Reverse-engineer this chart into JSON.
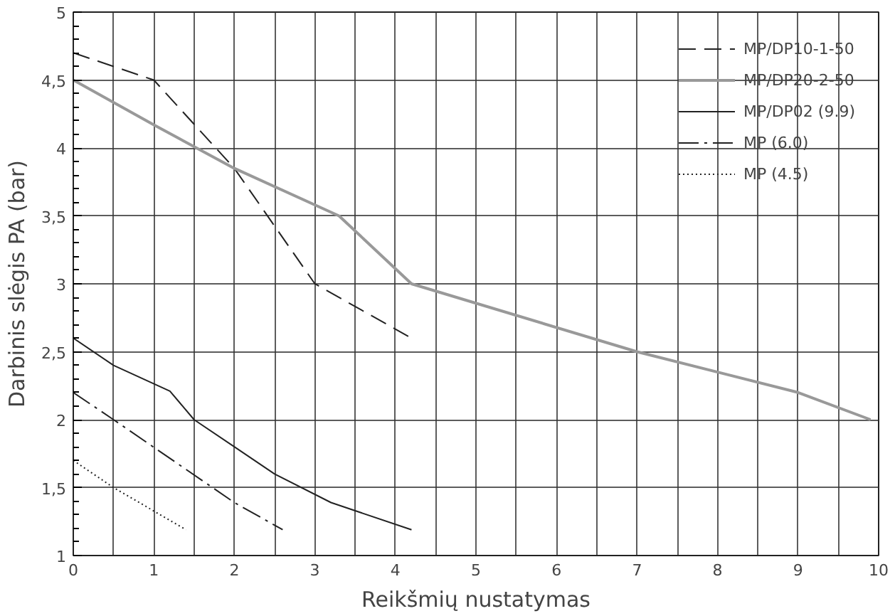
{
  "chart_data": {
    "type": "line",
    "xlabel": "Reikšmių nustatymas",
    "ylabel": "Darbinis slėgis PA (bar)",
    "xlim": [
      0,
      10
    ],
    "ylim": [
      1,
      5
    ],
    "xticks": [
      0,
      {
        "value": 0.5,
        "label": null
      },
      1,
      {
        "value": 1.5,
        "label": null
      },
      2,
      {
        "value": 2.5,
        "label": null
      },
      3,
      {
        "value": 3.5,
        "label": null
      },
      4,
      {
        "value": 4.5,
        "label": null
      },
      5,
      {
        "value": 5.5,
        "label": null
      },
      6,
      {
        "value": 6.5,
        "label": null
      },
      7,
      {
        "value": 7.5,
        "label": null
      },
      8,
      {
        "value": 8.5,
        "label": null
      },
      9,
      {
        "value": 9.5,
        "label": null
      },
      10
    ],
    "yticks": [
      1,
      {
        "value": 1.5,
        "label": "1,5"
      },
      2,
      {
        "value": 2.5,
        "label": "2,5"
      },
      3,
      {
        "value": 3.5,
        "label": "3,5"
      },
      4,
      {
        "value": 4.5,
        "label": "4,5"
      },
      5
    ],
    "grid": true,
    "legend": "top right",
    "marker": "none",
    "series": [
      {
        "name": "MP/DP10-1-50",
        "color": "#222222",
        "line_style": "dashed",
        "x": [
          0,
          1,
          2,
          3,
          4.2
        ],
        "values": [
          4.7,
          4.5,
          3.85,
          3.0,
          2.6
        ]
      },
      {
        "name": "MP/DP20-2-50",
        "color": "#999999",
        "line_style": "solid",
        "x": [
          0,
          1,
          2,
          3.3,
          4.2,
          7,
          9,
          9.9
        ],
        "values": [
          4.5,
          4.17,
          3.85,
          3.5,
          3.0,
          2.5,
          2.2,
          2.0
        ]
      },
      {
        "name": "MP/DP02 (9.9)",
        "color": "#222222",
        "line_style": "solid",
        "x": [
          0,
          0.5,
          1.2,
          1.5,
          2,
          2.5,
          3.2,
          4.2
        ],
        "values": [
          2.6,
          2.4,
          2.21,
          2.0,
          1.8,
          1.6,
          1.39,
          1.19
        ]
      },
      {
        "name": "MP (6.0)",
        "color": "#222222",
        "line_style": "dashdot",
        "x": [
          0,
          0.5,
          2,
          2.6
        ],
        "values": [
          2.2,
          2.0,
          1.39,
          1.19
        ]
      },
      {
        "name": "MP (4.5)",
        "color": "#222222",
        "line_style": "dotted",
        "x": [
          0,
          0.5,
          1.4
        ],
        "values": [
          1.7,
          1.5,
          1.19
        ]
      }
    ]
  }
}
